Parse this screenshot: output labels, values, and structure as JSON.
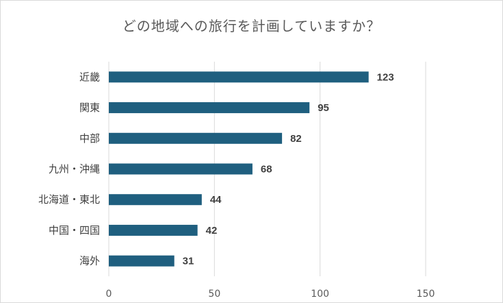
{
  "chart_data": {
    "type": "bar",
    "orientation": "horizontal",
    "title": "どの地域への旅行を計画していますか？",
    "categories": [
      "近畿",
      "関東",
      "中部",
      "九州・沖縄",
      "北海道・東北",
      "中国・四国",
      "海外"
    ],
    "values": [
      123,
      95,
      82,
      68,
      44,
      42,
      31
    ],
    "xlim": [
      0,
      150
    ],
    "x_ticks": [
      0,
      50,
      100,
      150
    ],
    "grid": true,
    "legend": "none",
    "bar_color": "#1f5f7f"
  }
}
